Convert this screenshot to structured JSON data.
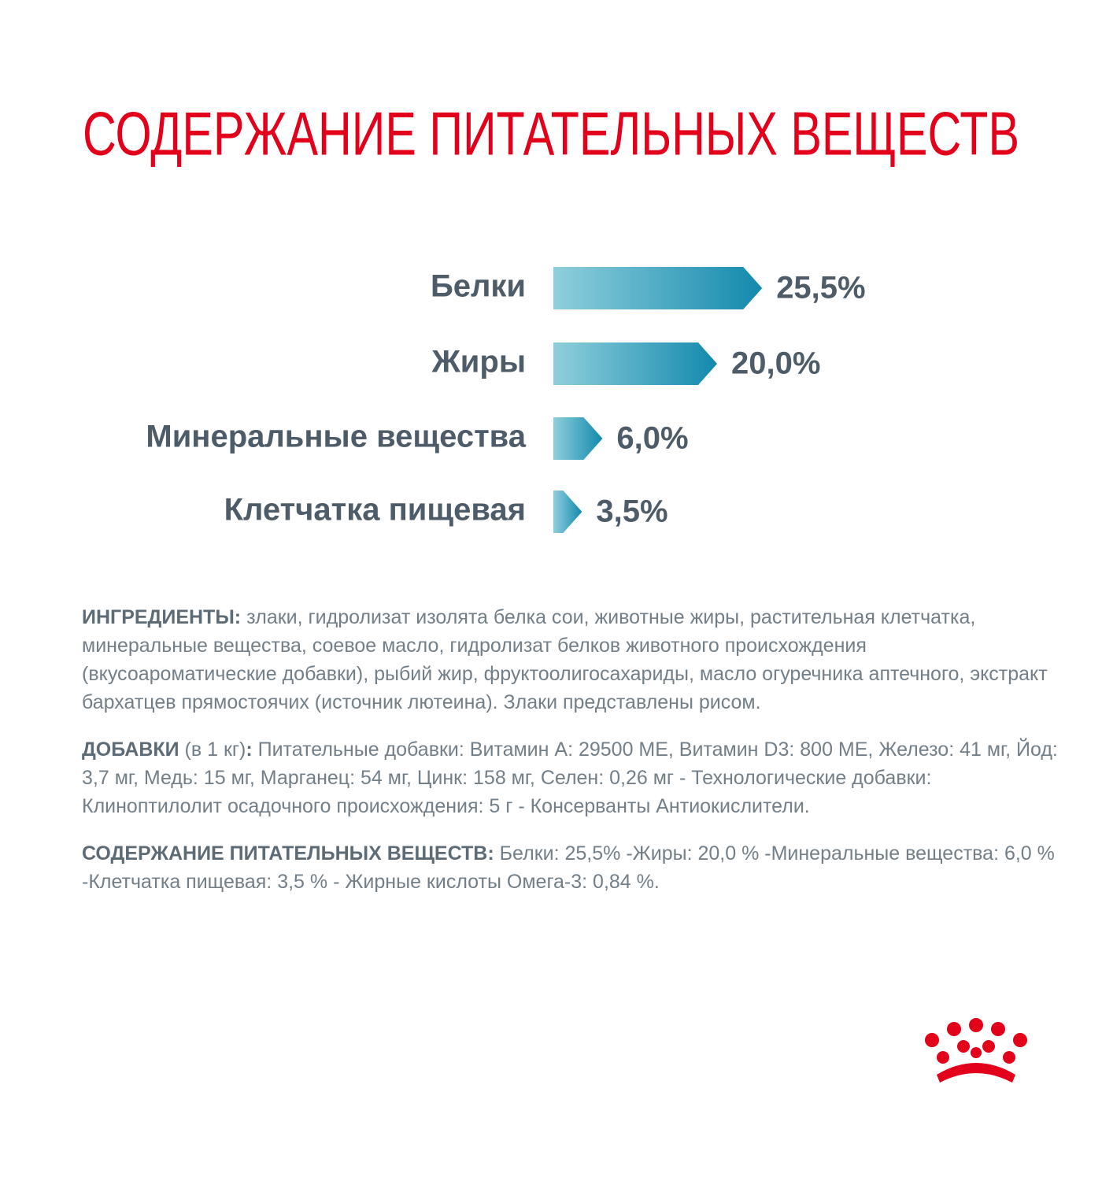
{
  "chart_data": {
    "type": "bar",
    "orientation": "horizontal",
    "title": "СОДЕРЖАНИЕ ПИТАТЕЛЬНЫХ ВЕЩЕСТВ",
    "categories": [
      "Белки",
      "Жиры",
      "Минеральные вещества",
      "Клетчатка пищевая"
    ],
    "values": [
      25.5,
      20.0,
      6.0,
      3.5
    ],
    "value_labels": [
      "25,5%",
      "20,0%",
      "6,0%",
      "3,5%"
    ],
    "color_start": "#8fcfdc",
    "color_end": "#1389ad"
  },
  "paragraphs": [
    [
      {
        "text": "ИНГРЕДИЕНТЫ:",
        "bold": true
      },
      {
        "text": " злаки, гидролизат изолята белка сои, животные жиры, растительная клетчатка, минеральные вещества, соевое масло, гидролизат белков животного происхождения (вкусоароматические добавки), рыбий жир, фруктоолигосахариды, масло огуречника аптечного, экстракт бархатцев прямостоячих (источник лютеина). Злаки представлены рисом."
      }
    ],
    [
      {
        "text": "ДОБАВКИ",
        "bold": true
      },
      {
        "text": " (в 1 кг)"
      },
      {
        "text": ":",
        "bold": true
      },
      {
        "text": " Питательные добавки: Витамин А: 29500 МЕ, Витамин D3: 800 МЕ, Железо: 41 мг, Йод: 3,7 мг, Медь: 15 мг, Марганец: 54 мг, Цинк: 158 мг, Селен: 0,26 мг - Технологические добавки: Клиноптилолит осадочного происхождения: 5 г - Консерванты Антиокислители."
      }
    ],
    [
      {
        "text": "СОДЕРЖАНИЕ ПИТАТЕЛЬНЫХ ВЕЩЕСТВ:",
        "bold": true
      },
      {
        "text": " Белки: 25,5% -Жиры: 20,0 % -Минеральные вещества: 6,0 % -Клетчатка пищевая: 3,5 % - Жирные кислоты Омега-3: 0,84 %."
      }
    ]
  ]
}
